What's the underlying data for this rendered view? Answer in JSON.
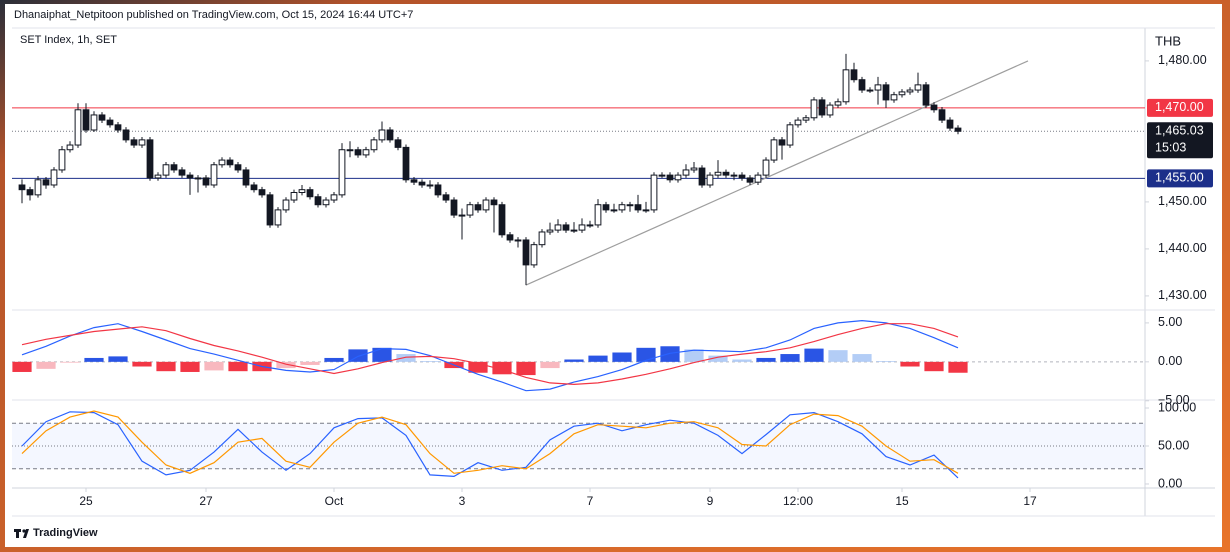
{
  "chart_data": {
    "type": "candlestick",
    "published": "Dhanaiphat_Netpitoon published on TradingView.com, Oct 15, 2024 16:44 UTC+7",
    "title": "SET Index, 1h, SET",
    "currency": "THB",
    "up_color": "#ffffff",
    "down_color": "#131722",
    "candles": [
      [
        1453.6,
        1454.8,
        1449.7,
        1452.6
      ],
      [
        1452.6,
        1453.2,
        1450.3,
        1451.5
      ],
      [
        1451.5,
        1455.5,
        1450.9,
        1454.7
      ],
      [
        1454.7,
        1455.3,
        1452.8,
        1453.6
      ],
      [
        1453.6,
        1457.4,
        1453.0,
        1456.8
      ],
      [
        1456.8,
        1461.9,
        1456.2,
        1461.1
      ],
      [
        1461.1,
        1462.9,
        1460.5,
        1462.1
      ],
      [
        1462.1,
        1471.0,
        1461.5,
        1469.6
      ],
      [
        1469.6,
        1471.0,
        1464.7,
        1465.3
      ],
      [
        1465.3,
        1469.3,
        1464.9,
        1468.5
      ],
      [
        1468.5,
        1469.1,
        1466.8,
        1467.4
      ],
      [
        1467.4,
        1468.0,
        1465.8,
        1466.4
      ],
      [
        1466.4,
        1467.0,
        1464.7,
        1465.3
      ],
      [
        1465.3,
        1465.9,
        1462.6,
        1463.2
      ],
      [
        1463.2,
        1463.8,
        1461.5,
        1462.1
      ],
      [
        1462.1,
        1463.8,
        1461.5,
        1463.2
      ],
      [
        1463.2,
        1463.8,
        1454.5,
        1455.1
      ],
      [
        1455.1,
        1456.3,
        1454.5,
        1455.7
      ],
      [
        1455.7,
        1458.5,
        1455.1,
        1457.9
      ],
      [
        1457.9,
        1458.5,
        1456.2,
        1456.8
      ],
      [
        1456.8,
        1457.4,
        1455.1,
        1455.7
      ],
      [
        1455.7,
        1456.3,
        1451.5,
        1455.1
      ],
      [
        1455.1,
        1455.7,
        1452.0,
        1455.1
      ],
      [
        1455.1,
        1455.7,
        1453.0,
        1453.6
      ],
      [
        1453.6,
        1458.5,
        1453.0,
        1457.9
      ],
      [
        1457.9,
        1459.5,
        1457.3,
        1458.9
      ],
      [
        1458.9,
        1459.5,
        1457.3,
        1457.9
      ],
      [
        1457.9,
        1458.5,
        1456.2,
        1456.8
      ],
      [
        1456.8,
        1457.4,
        1453.0,
        1453.6
      ],
      [
        1453.6,
        1454.2,
        1452.0,
        1452.6
      ],
      [
        1452.6,
        1453.2,
        1450.9,
        1451.5
      ],
      [
        1451.5,
        1452.1,
        1444.5,
        1445.1
      ],
      [
        1445.1,
        1448.9,
        1444.5,
        1448.3
      ],
      [
        1448.3,
        1451.0,
        1447.7,
        1450.4
      ],
      [
        1450.4,
        1452.6,
        1449.8,
        1452.0
      ],
      [
        1452.0,
        1453.6,
        1451.4,
        1452.6
      ],
      [
        1452.6,
        1453.2,
        1450.5,
        1451.1
      ],
      [
        1451.1,
        1451.7,
        1448.8,
        1449.4
      ],
      [
        1449.4,
        1451.0,
        1448.8,
        1450.4
      ],
      [
        1450.4,
        1452.1,
        1449.8,
        1451.5
      ],
      [
        1451.5,
        1462.5,
        1450.9,
        1461.1
      ],
      [
        1461.1,
        1462.9,
        1459.5,
        1461.1
      ],
      [
        1461.1,
        1461.7,
        1459.4,
        1460.0
      ],
      [
        1460.0,
        1461.7,
        1459.4,
        1461.1
      ],
      [
        1461.1,
        1463.8,
        1460.5,
        1463.2
      ],
      [
        1463.2,
        1467.1,
        1462.6,
        1465.3
      ],
      [
        1465.3,
        1465.9,
        1462.6,
        1463.2
      ],
      [
        1463.2,
        1463.8,
        1461.0,
        1461.6
      ],
      [
        1461.6,
        1462.2,
        1454.1,
        1454.7
      ],
      [
        1454.7,
        1455.3,
        1453.6,
        1454.2
      ],
      [
        1454.2,
        1454.8,
        1453.0,
        1453.6
      ],
      [
        1453.6,
        1454.6,
        1452.8,
        1453.6
      ],
      [
        1453.6,
        1454.2,
        1450.9,
        1451.5
      ],
      [
        1451.5,
        1452.1,
        1449.8,
        1450.4
      ],
      [
        1450.4,
        1451.0,
        1446.6,
        1447.2
      ],
      [
        1447.2,
        1448.6,
        1442.0,
        1447.2
      ],
      [
        1447.2,
        1450.0,
        1446.6,
        1449.4
      ],
      [
        1449.4,
        1450.0,
        1447.7,
        1448.3
      ],
      [
        1448.3,
        1451.0,
        1447.7,
        1450.4
      ],
      [
        1450.4,
        1451.0,
        1443.5,
        1449.4
      ],
      [
        1449.4,
        1450.0,
        1442.4,
        1443.0
      ],
      [
        1443.0,
        1443.6,
        1441.3,
        1441.9
      ],
      [
        1441.9,
        1442.5,
        1440.3,
        1441.9
      ],
      [
        1441.9,
        1442.5,
        1432.3,
        1436.6
      ],
      [
        1436.6,
        1441.5,
        1436.0,
        1440.9
      ],
      [
        1440.9,
        1444.2,
        1440.3,
        1443.6
      ],
      [
        1443.6,
        1445.6,
        1443.0,
        1444.0
      ],
      [
        1444.0,
        1446.3,
        1443.4,
        1445.1
      ],
      [
        1445.1,
        1445.7,
        1443.4,
        1444.0
      ],
      [
        1444.0,
        1445.7,
        1443.4,
        1444.0
      ],
      [
        1444.0,
        1446.5,
        1443.4,
        1445.1
      ],
      [
        1445.1,
        1446.0,
        1444.5,
        1445.1
      ],
      [
        1445.1,
        1450.6,
        1444.5,
        1449.4
      ],
      [
        1449.4,
        1450.0,
        1447.7,
        1448.3
      ],
      [
        1448.3,
        1449.6,
        1447.7,
        1448.3
      ],
      [
        1448.3,
        1450.0,
        1447.7,
        1449.4
      ],
      [
        1449.4,
        1450.0,
        1447.9,
        1449.4
      ],
      [
        1449.4,
        1451.5,
        1447.7,
        1448.3
      ],
      [
        1448.3,
        1450.0,
        1447.7,
        1448.3
      ],
      [
        1448.3,
        1456.3,
        1447.7,
        1455.7
      ],
      [
        1455.7,
        1456.3,
        1455.1,
        1455.7
      ],
      [
        1455.7,
        1456.3,
        1454.1,
        1454.7
      ],
      [
        1454.7,
        1456.3,
        1454.1,
        1455.7
      ],
      [
        1455.7,
        1458.0,
        1455.1,
        1456.8
      ],
      [
        1456.8,
        1458.5,
        1456.2,
        1457.2
      ],
      [
        1457.2,
        1457.8,
        1453.0,
        1453.6
      ],
      [
        1453.6,
        1456.3,
        1453.0,
        1455.7
      ],
      [
        1455.7,
        1458.9,
        1455.1,
        1456.3
      ],
      [
        1456.3,
        1456.9,
        1455.1,
        1455.7
      ],
      [
        1455.7,
        1456.3,
        1454.6,
        1455.7
      ],
      [
        1455.7,
        1456.3,
        1454.5,
        1455.1
      ],
      [
        1455.1,
        1455.7,
        1453.6,
        1454.2
      ],
      [
        1454.2,
        1456.3,
        1453.6,
        1455.7
      ],
      [
        1455.7,
        1459.5,
        1455.1,
        1458.9
      ],
      [
        1458.9,
        1463.8,
        1458.3,
        1463.2
      ],
      [
        1463.2,
        1463.8,
        1459.0,
        1462.1
      ],
      [
        1462.1,
        1467.0,
        1461.5,
        1466.4
      ],
      [
        1466.4,
        1468.0,
        1465.8,
        1467.4
      ],
      [
        1467.4,
        1468.5,
        1466.8,
        1467.9
      ],
      [
        1467.9,
        1472.3,
        1467.3,
        1471.7
      ],
      [
        1471.7,
        1472.3,
        1467.9,
        1468.5
      ],
      [
        1468.5,
        1471.2,
        1467.9,
        1470.6
      ],
      [
        1470.6,
        1472.0,
        1470.0,
        1471.3
      ],
      [
        1471.3,
        1481.5,
        1470.7,
        1478.1
      ],
      [
        1478.1,
        1479.6,
        1475.4,
        1476.0
      ],
      [
        1476.0,
        1476.6,
        1473.2,
        1473.8
      ],
      [
        1473.8,
        1474.4,
        1473.2,
        1473.8
      ],
      [
        1473.8,
        1476.6,
        1470.7,
        1474.9
      ],
      [
        1474.9,
        1475.5,
        1470.0,
        1471.7
      ],
      [
        1471.7,
        1473.4,
        1471.1,
        1472.8
      ],
      [
        1472.8,
        1474.0,
        1472.2,
        1473.4
      ],
      [
        1473.4,
        1474.4,
        1472.8,
        1473.8
      ],
      [
        1473.8,
        1477.5,
        1473.2,
        1474.9
      ],
      [
        1474.9,
        1475.5,
        1470.0,
        1470.6
      ],
      [
        1470.6,
        1471.2,
        1469.0,
        1469.6
      ],
      [
        1469.6,
        1470.2,
        1466.8,
        1467.4
      ],
      [
        1467.4,
        1468.0,
        1465.1,
        1465.7
      ],
      [
        1465.7,
        1466.3,
        1464.4,
        1465.03
      ]
    ],
    "xlim": [
      -1.25,
      140.375
    ],
    "xticks": [
      {
        "value": 8,
        "label": "25"
      },
      {
        "value": 23,
        "label": "27"
      },
      {
        "value": 39,
        "label": "Oct"
      },
      {
        "value": 55,
        "label": "3"
      },
      {
        "value": 71,
        "label": "7"
      },
      {
        "value": 86,
        "label": "9"
      },
      {
        "value": 97,
        "label": "12:00"
      },
      {
        "value": 110,
        "label": "15"
      },
      {
        "value": 126,
        "label": "17"
      }
    ],
    "ylim": [
      1427,
      1487
    ],
    "yticks": [
      {
        "value": 1430,
        "label": "1,430.00"
      },
      {
        "value": 1440,
        "label": "1,440.00"
      },
      {
        "value": 1450,
        "label": "1,450.00"
      },
      {
        "value": 1480,
        "label": "1,480.00"
      }
    ],
    "hlines": [
      {
        "value": 1470,
        "label": "1,470.00",
        "color": "#f23645"
      },
      {
        "value": 1455,
        "label": "1,455.00",
        "color": "#1c2f8a"
      }
    ],
    "last": {
      "value": 1465.03,
      "label": "1,465.03",
      "countdown": "15:03",
      "color": "#131722"
    },
    "trendline": {
      "x": [
        63,
        125.75
      ],
      "values": [
        1432.3,
        1480.0
      ],
      "color": "#9e9e9e"
    },
    "macd": {
      "ylim": [
        -4.9,
        6.4
      ],
      "yticks": [
        {
          "value": 5,
          "label": "5.00"
        },
        {
          "value": 0,
          "label": "0.00"
        },
        {
          "value": -5,
          "label": "−5.00"
        }
      ],
      "levels": [
        0
      ],
      "x": [
        0,
        3,
        6,
        9,
        12,
        15,
        18,
        21,
        24,
        27,
        30,
        33,
        36,
        39,
        42,
        45,
        48,
        51,
        54,
        57,
        60,
        63,
        66,
        69,
        72,
        75,
        78,
        81,
        84,
        87,
        90,
        93,
        96,
        99,
        102,
        105,
        108,
        111,
        114,
        117
      ],
      "histogram": {
        "colors": [
          "#2a55e5",
          "#b3cdf6",
          "#f23645",
          "#f8b8bf"
        ],
        "values": [
          -1.3,
          -0.9,
          -0.1,
          0.5,
          0.7,
          -0.6,
          -1.2,
          -1.3,
          -1.1,
          -1.2,
          -1.2,
          -0.8,
          -0.4,
          0.5,
          1.6,
          1.8,
          1.0,
          0.1,
          -0.8,
          -1.4,
          -1.6,
          -1.7,
          -0.8,
          0.3,
          0.8,
          1.2,
          1.8,
          2.0,
          1.6,
          0.8,
          0.3,
          0.5,
          1.0,
          1.7,
          1.5,
          1.0,
          0.1,
          -0.6,
          -1.2,
          -1.4
        ]
      },
      "series": [
        {
          "color": "#2962ff",
          "values": [
            0.9,
            2.0,
            3.3,
            4.4,
            4.9,
            3.9,
            2.8,
            1.7,
            1.0,
            0.2,
            -0.6,
            -1.1,
            -1.3,
            -1.0,
            0.7,
            1.7,
            1.6,
            0.8,
            -0.4,
            -1.6,
            -2.6,
            -3.7,
            -3.5,
            -2.6,
            -1.9,
            -1.0,
            0.2,
            1.1,
            1.5,
            1.4,
            1.3,
            1.8,
            2.8,
            4.3,
            5.0,
            5.3,
            5.0,
            4.3,
            3.1,
            1.8
          ]
        },
        {
          "color": "#f23645",
          "values": [
            2.2,
            2.9,
            3.4,
            3.9,
            4.2,
            4.5,
            4.0,
            3.0,
            2.1,
            1.4,
            0.6,
            -0.3,
            -0.9,
            -1.5,
            -0.9,
            -0.1,
            0.6,
            0.7,
            0.4,
            -0.2,
            -1.0,
            -2.0,
            -2.7,
            -2.9,
            -2.7,
            -2.2,
            -1.6,
            -0.9,
            -0.1,
            0.6,
            1.0,
            1.3,
            1.8,
            2.6,
            3.5,
            4.3,
            4.9,
            4.9,
            4.3,
            3.2
          ]
        }
      ]
    },
    "stoch": {
      "ylim": [
        -5.3,
        107.9
      ],
      "yticks": [
        {
          "value": 0,
          "label": "0.00"
        },
        {
          "value": 50,
          "label": "50.00"
        },
        {
          "value": 100,
          "label": "100.00"
        }
      ],
      "levels": [
        80,
        50,
        20
      ],
      "band_color": "#2962ff",
      "x": [
        0,
        3,
        6,
        9,
        12,
        15,
        18,
        21,
        24,
        27,
        30,
        33,
        36,
        39,
        42,
        45,
        48,
        51,
        54,
        57,
        60,
        63,
        66,
        69,
        72,
        75,
        78,
        81,
        84,
        87,
        90,
        93,
        96,
        99,
        102,
        105,
        108,
        111,
        114,
        117
      ],
      "series": [
        {
          "color": "#2962ff",
          "values": [
            50,
            82,
            95,
            94,
            78,
            30,
            12,
            18,
            42,
            72,
            42,
            18,
            40,
            74,
            86,
            87,
            64,
            12,
            10,
            28,
            18,
            22,
            58,
            76,
            80,
            70,
            78,
            84,
            80,
            64,
            40,
            65,
            91,
            94,
            82,
            66,
            36,
            25,
            38,
            8
          ]
        },
        {
          "color": "#ff9800",
          "values": [
            40,
            70,
            88,
            96,
            88,
            55,
            25,
            14,
            28,
            55,
            60,
            30,
            22,
            55,
            80,
            88,
            78,
            40,
            14,
            18,
            24,
            20,
            40,
            66,
            78,
            76,
            74,
            80,
            82,
            74,
            52,
            50,
            78,
            92,
            90,
            76,
            50,
            30,
            32,
            14
          ]
        }
      ]
    }
  },
  "footer": "TradingView"
}
